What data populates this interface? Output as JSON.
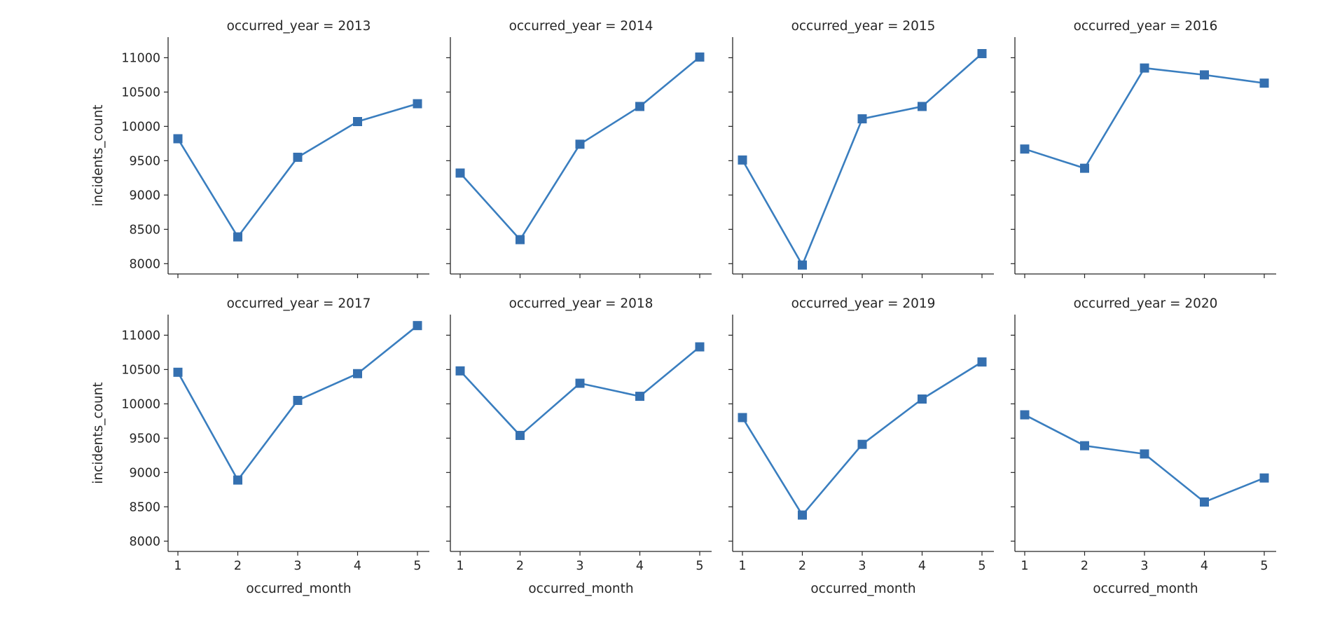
{
  "colors": {
    "line": "#3a7ebf",
    "marker": "#3570b0",
    "axis": "#262626"
  },
  "chart_data": {
    "type": "line",
    "layout": "facet-grid 2 rows x 4 columns",
    "marker": "square",
    "xlabel": "occurred_month",
    "ylabel": "incidents_count",
    "x": [
      1,
      2,
      3,
      4,
      5
    ],
    "xticks": [
      "1",
      "2",
      "3",
      "4",
      "5"
    ],
    "ylim": [
      7850,
      11300
    ],
    "yticks": [
      "8000",
      "8500",
      "9000",
      "9500",
      "10000",
      "10500",
      "11000"
    ],
    "panels": [
      {
        "title": "occurred_year = 2013",
        "values": [
          9820,
          8390,
          9550,
          10070,
          10330
        ]
      },
      {
        "title": "occurred_year = 2014",
        "values": [
          9320,
          8350,
          9740,
          10290,
          11010
        ]
      },
      {
        "title": "occurred_year = 2015",
        "values": [
          9510,
          7980,
          10110,
          10290,
          11060
        ]
      },
      {
        "title": "occurred_year = 2016",
        "values": [
          9670,
          9390,
          10850,
          10750,
          10630
        ]
      },
      {
        "title": "occurred_year = 2017",
        "values": [
          10460,
          8890,
          10050,
          10440,
          11140
        ]
      },
      {
        "title": "occurred_year = 2018",
        "values": [
          10480,
          9540,
          10300,
          10110,
          10830
        ]
      },
      {
        "title": "occurred_year = 2019",
        "values": [
          9800,
          8380,
          9410,
          10070,
          10610
        ]
      },
      {
        "title": "occurred_year = 2020",
        "values": [
          9840,
          9390,
          9270,
          8570,
          8920
        ]
      }
    ]
  }
}
